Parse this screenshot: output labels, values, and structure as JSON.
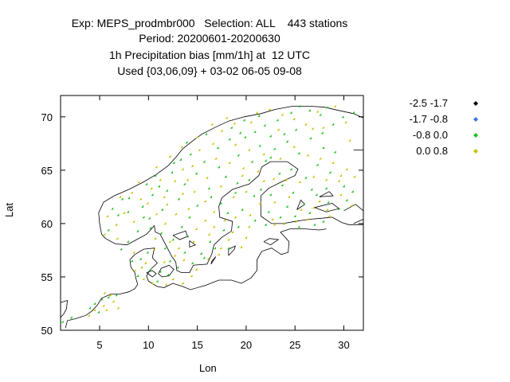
{
  "title": {
    "line1": "Exp: MEPS_prodmbr000   Selection: ALL    443 stations",
    "line2": "Period: 20200601-20200630",
    "line3": "1h Precipitation bias [mm/1h] at  12 UTC",
    "line4": "Used {03,06,09} + 03-02 06-05 09-08"
  },
  "axes": {
    "xlabel": "Lon",
    "ylabel": "Lat",
    "xticks": [
      5,
      10,
      15,
      20,
      25,
      30
    ],
    "yticks": [
      50,
      55,
      60,
      65,
      70
    ],
    "xlim": [
      1,
      32
    ],
    "ylim": [
      50,
      72
    ]
  },
  "legend": [
    {
      "label": "-2.5 -1.7",
      "color": "#000000"
    },
    {
      "label": "-1.7 -0.8",
      "color": "#3b73e0"
    },
    {
      "label": "-0.8 0.0",
      "color": "#1ec01e"
    },
    {
      "label": "0.0 0.8",
      "color": "#c8c000"
    }
  ],
  "colors": {
    "green": "#1ec01e",
    "yellow": "#c8c000",
    "coast": "#000000"
  },
  "chart_data": {
    "type": "scatter",
    "title": "1h Precipitation bias [mm/1h] at  12 UTC",
    "xlabel": "Lon",
    "ylabel": "Lat",
    "xlim": [
      1,
      32
    ],
    "ylim": [
      50,
      72
    ],
    "series": [
      {
        "name": "-0.8 0.0",
        "color": "#1ec01e",
        "points": [
          [
            1.3,
            50.7
          ],
          [
            2.2,
            51.1
          ],
          [
            4.1,
            52.0
          ],
          [
            4.6,
            52.4
          ],
          [
            5.3,
            52.8
          ],
          [
            5.0,
            51.6
          ],
          [
            6.0,
            53.0
          ],
          [
            6.8,
            53.2
          ],
          [
            7.3,
            57.5
          ],
          [
            8.0,
            58.2
          ],
          [
            6.0,
            59.3
          ],
          [
            6.4,
            61.3
          ],
          [
            7.4,
            62.2
          ],
          [
            8.0,
            61.0
          ],
          [
            9.0,
            59.2
          ],
          [
            9.5,
            61.5
          ],
          [
            10.2,
            60.4
          ],
          [
            10.5,
            62.6
          ],
          [
            11.2,
            63.4
          ],
          [
            12.5,
            64.7
          ],
          [
            13.4,
            65.9
          ],
          [
            14.4,
            66.4
          ],
          [
            14.0,
            67.5
          ],
          [
            16.0,
            68.3
          ],
          [
            18.6,
            68.9
          ],
          [
            19.9,
            69.6
          ],
          [
            21.4,
            70.0
          ],
          [
            22.0,
            69.1
          ],
          [
            23.3,
            69.6
          ],
          [
            24.7,
            70.3
          ],
          [
            25.6,
            70.9
          ],
          [
            26.6,
            70.5
          ],
          [
            27.7,
            70.1
          ],
          [
            28.4,
            70.8
          ],
          [
            30.0,
            69.9
          ],
          [
            31.1,
            70.3
          ],
          [
            20.0,
            68.0
          ],
          [
            21.5,
            67.2
          ],
          [
            23.0,
            66.9
          ],
          [
            24.3,
            67.6
          ],
          [
            25.5,
            66.5
          ],
          [
            26.7,
            67.9
          ],
          [
            28.0,
            67.0
          ],
          [
            29.2,
            66.6
          ],
          [
            19.3,
            66.3
          ],
          [
            20.7,
            65.7
          ],
          [
            22.1,
            65.8
          ],
          [
            23.5,
            64.6
          ],
          [
            24.7,
            65.0
          ],
          [
            26.2,
            64.2
          ],
          [
            27.4,
            65.4
          ],
          [
            28.7,
            64.7
          ],
          [
            30.1,
            63.4
          ],
          [
            31.0,
            62.9
          ],
          [
            18.0,
            64.3
          ],
          [
            19.2,
            63.7
          ],
          [
            20.4,
            64.0
          ],
          [
            21.6,
            63.1
          ],
          [
            22.6,
            62.6
          ],
          [
            23.8,
            63.5
          ],
          [
            24.9,
            62.8
          ],
          [
            26.0,
            61.7
          ],
          [
            27.3,
            62.6
          ],
          [
            28.5,
            61.9
          ],
          [
            29.6,
            61.3
          ],
          [
            16.5,
            62.4
          ],
          [
            17.5,
            61.8
          ],
          [
            18.2,
            60.9
          ],
          [
            19.7,
            61.2
          ],
          [
            21.0,
            60.2
          ],
          [
            22.4,
            61.0
          ],
          [
            23.6,
            60.5
          ],
          [
            25.1,
            60.6
          ],
          [
            26.6,
            60.9
          ],
          [
            28.0,
            60.1
          ],
          [
            15.1,
            61.6
          ],
          [
            14.3,
            60.5
          ],
          [
            13.5,
            59.6
          ],
          [
            12.6,
            58.4
          ],
          [
            11.8,
            57.6
          ],
          [
            12.3,
            56.4
          ],
          [
            13.1,
            55.8
          ],
          [
            14.6,
            56.2
          ],
          [
            15.5,
            57.1
          ],
          [
            16.4,
            58.2
          ],
          [
            17.8,
            59.3
          ],
          [
            16.9,
            57.6
          ],
          [
            14.1,
            58.7
          ],
          [
            9.3,
            56.6
          ],
          [
            10.3,
            55.6
          ],
          [
            11.3,
            55.4
          ],
          [
            9.0,
            55.0
          ],
          [
            8.4,
            56.4
          ],
          [
            10.0,
            57.2
          ],
          [
            12.1,
            55.1
          ],
          [
            11.0,
            54.5
          ],
          [
            10.8,
            64.4
          ],
          [
            12.0,
            63.0
          ],
          [
            13.2,
            62.2
          ],
          [
            11.5,
            61.2
          ],
          [
            9.9,
            63.6
          ],
          [
            16.3,
            63.2
          ],
          [
            17.3,
            65.2
          ],
          [
            15.0,
            64.6
          ],
          [
            22.6,
            66.1
          ],
          [
            25.2,
            68.7
          ],
          [
            27.9,
            68.4
          ],
          [
            29.0,
            69.2
          ],
          [
            24.0,
            68.3
          ],
          [
            20.9,
            62.5
          ],
          [
            19.0,
            62.8
          ],
          [
            26.8,
            63.1
          ],
          [
            28.3,
            63.2
          ],
          [
            30.4,
            62.1
          ],
          [
            24.3,
            61.5
          ],
          [
            22.1,
            59.8
          ],
          [
            25.5,
            59.6
          ],
          [
            27.1,
            59.8
          ],
          [
            19.3,
            59.6
          ],
          [
            13.8,
            57.2
          ],
          [
            15.8,
            56.7
          ],
          [
            18.3,
            57.6
          ],
          [
            8.1,
            62.3
          ],
          [
            7.0,
            60.7
          ],
          [
            9.6,
            60.5
          ],
          [
            13.8,
            63.6
          ],
          [
            12.7,
            65.6
          ],
          [
            15.8,
            65.7
          ],
          [
            17.2,
            67.0
          ],
          [
            18.4,
            67.8
          ],
          [
            19.5,
            68.4
          ],
          [
            21.0,
            68.5
          ],
          [
            22.6,
            68.1
          ],
          [
            11.4,
            59.0
          ],
          [
            10.3,
            59.5
          ]
        ]
      },
      {
        "name": "0.0 0.8",
        "color": "#c8c000",
        "points": [
          [
            4.0,
            51.3
          ],
          [
            4.6,
            51.8
          ],
          [
            5.5,
            52.2
          ],
          [
            5.8,
            51.8
          ],
          [
            6.5,
            52.6
          ],
          [
            7.0,
            52.0
          ],
          [
            5.6,
            53.4
          ],
          [
            6.2,
            53.2
          ],
          [
            5.6,
            58.9
          ],
          [
            6.9,
            58.5
          ],
          [
            6.8,
            59.8
          ],
          [
            5.9,
            60.6
          ],
          [
            7.6,
            60.9
          ],
          [
            8.6,
            60.1
          ],
          [
            9.3,
            62.2
          ],
          [
            10.0,
            61.8
          ],
          [
            10.9,
            60.8
          ],
          [
            11.7,
            62.4
          ],
          [
            12.8,
            63.9
          ],
          [
            13.6,
            65.0
          ],
          [
            14.6,
            65.3
          ],
          [
            15.3,
            66.8
          ],
          [
            16.7,
            67.4
          ],
          [
            17.6,
            68.6
          ],
          [
            18.9,
            69.3
          ],
          [
            20.6,
            69.4
          ],
          [
            22.5,
            70.6
          ],
          [
            23.8,
            70.1
          ],
          [
            25.0,
            69.7
          ],
          [
            26.2,
            69.2
          ],
          [
            27.4,
            70.4
          ],
          [
            29.2,
            70.9
          ],
          [
            19.0,
            67.3
          ],
          [
            20.4,
            66.8
          ],
          [
            21.9,
            66.4
          ],
          [
            23.6,
            66.0
          ],
          [
            25.0,
            67.1
          ],
          [
            26.4,
            66.3
          ],
          [
            27.7,
            66.0
          ],
          [
            29.0,
            65.6
          ],
          [
            30.4,
            65.0
          ],
          [
            18.4,
            65.6
          ],
          [
            19.8,
            65.1
          ],
          [
            21.3,
            64.8
          ],
          [
            22.9,
            64.1
          ],
          [
            24.2,
            64.0
          ],
          [
            25.6,
            63.8
          ],
          [
            27.0,
            64.3
          ],
          [
            28.3,
            64.0
          ],
          [
            29.6,
            63.9
          ],
          [
            17.5,
            63.4
          ],
          [
            18.8,
            62.4
          ],
          [
            20.1,
            62.9
          ],
          [
            21.5,
            61.8
          ],
          [
            23.0,
            61.9
          ],
          [
            24.5,
            62.4
          ],
          [
            25.7,
            61.2
          ],
          [
            27.0,
            61.4
          ],
          [
            28.4,
            61.2
          ],
          [
            29.8,
            62.6
          ],
          [
            14.8,
            62.9
          ],
          [
            15.9,
            62.0
          ],
          [
            16.8,
            61.0
          ],
          [
            17.9,
            60.2
          ],
          [
            19.0,
            60.5
          ],
          [
            20.5,
            60.7
          ],
          [
            22.8,
            60.3
          ],
          [
            24.0,
            59.9
          ],
          [
            26.4,
            60.3
          ],
          [
            28.6,
            60.6
          ],
          [
            15.9,
            60.2
          ],
          [
            15.0,
            59.4
          ],
          [
            14.7,
            58.2
          ],
          [
            13.2,
            57.6
          ],
          [
            12.8,
            56.9
          ],
          [
            11.7,
            56.3
          ],
          [
            13.7,
            56.5
          ],
          [
            15.0,
            55.6
          ],
          [
            16.2,
            56.6
          ],
          [
            17.3,
            57.0
          ],
          [
            16.8,
            59.6
          ],
          [
            18.3,
            58.4
          ],
          [
            8.6,
            57.2
          ],
          [
            9.8,
            56.2
          ],
          [
            10.7,
            57.5
          ],
          [
            9.6,
            54.7
          ],
          [
            10.5,
            54.3
          ],
          [
            11.9,
            54.2
          ],
          [
            12.6,
            54.7
          ],
          [
            13.6,
            54.3
          ],
          [
            14.5,
            55.0
          ],
          [
            8.7,
            55.5
          ],
          [
            9.4,
            55.8
          ],
          [
            10.4,
            63.2
          ],
          [
            11.3,
            64.0
          ],
          [
            12.0,
            61.7
          ],
          [
            12.9,
            60.8
          ],
          [
            14.2,
            61.3
          ],
          [
            13.6,
            62.7
          ],
          [
            16.1,
            64.2
          ],
          [
            17.0,
            66.0
          ],
          [
            14.1,
            64.0
          ],
          [
            21.2,
            70.3
          ],
          [
            23.4,
            68.7
          ],
          [
            26.9,
            68.8
          ],
          [
            30.7,
            67.7
          ],
          [
            30.3,
            69.4
          ],
          [
            28.0,
            68.9
          ],
          [
            29.8,
            64.4
          ],
          [
            31.2,
            64.3
          ],
          [
            30.9,
            61.6
          ],
          [
            21.9,
            63.9
          ],
          [
            19.7,
            64.4
          ],
          [
            27.6,
            62.0
          ],
          [
            25.2,
            60.1
          ],
          [
            23.0,
            59.8
          ],
          [
            20.4,
            59.6
          ],
          [
            18.7,
            59.1
          ],
          [
            17.5,
            57.6
          ],
          [
            16.3,
            58.9
          ],
          [
            12.3,
            58.2
          ],
          [
            7.2,
            62.4
          ],
          [
            8.4,
            62.8
          ],
          [
            9.1,
            63.8
          ],
          [
            10.9,
            65.2
          ],
          [
            12.3,
            66.2
          ],
          [
            13.5,
            67.1
          ],
          [
            15.1,
            68.0
          ],
          [
            16.6,
            69.2
          ],
          [
            18.1,
            69.8
          ],
          [
            11.8,
            59.9
          ],
          [
            10.8,
            58.5
          ],
          [
            19.6,
            57.7
          ],
          [
            20.1,
            58.6
          ]
        ]
      }
    ]
  }
}
